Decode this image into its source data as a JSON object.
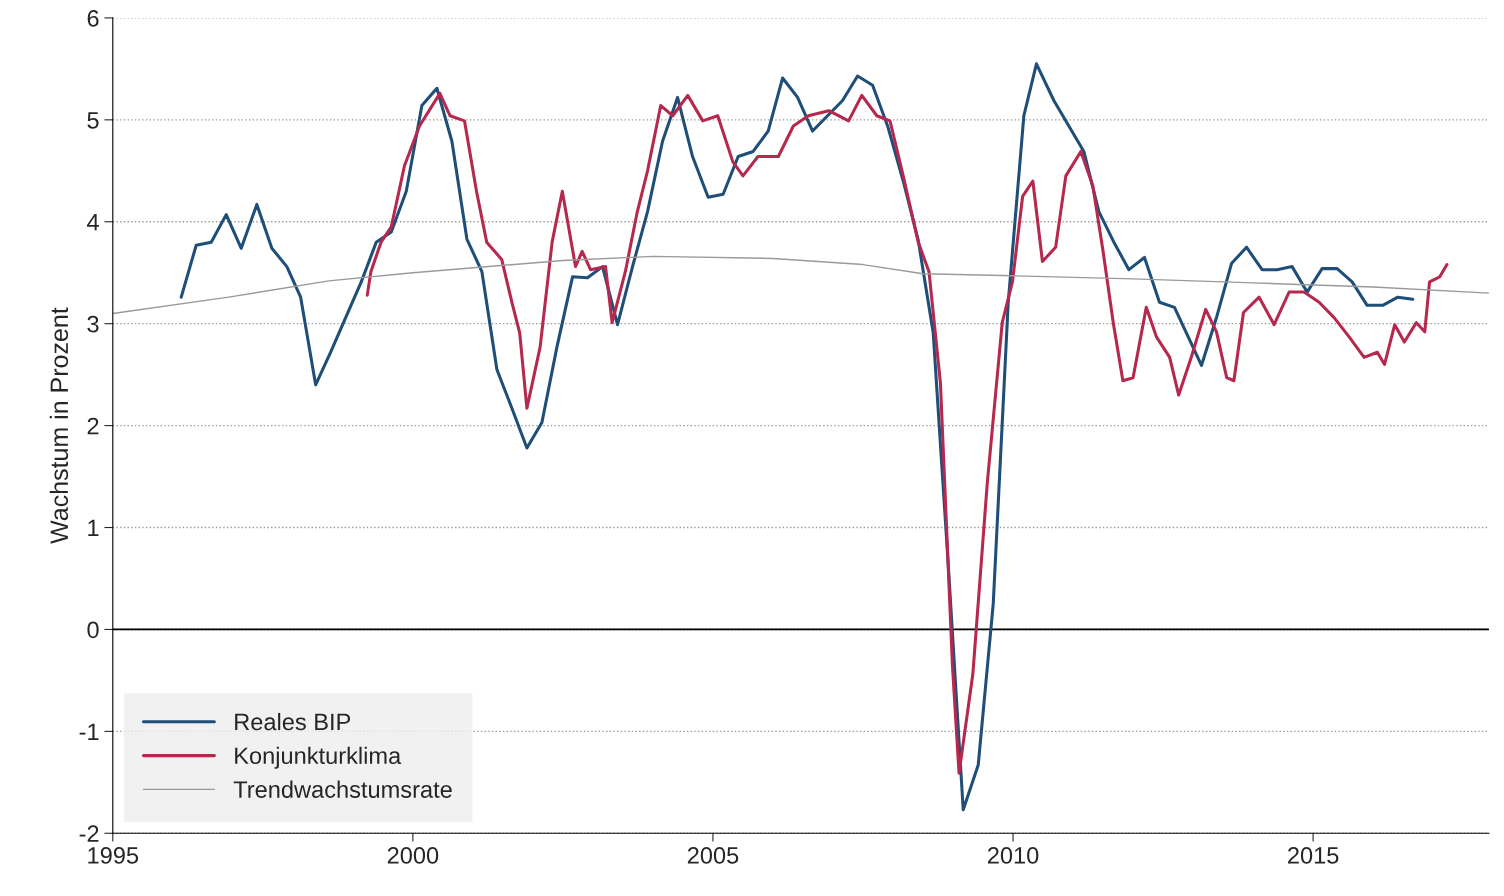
{
  "chart_data": {
    "type": "line",
    "ylabel": "Wachstum in Prozent",
    "xlim": [
      1995,
      2017.93
    ],
    "xticks": [
      1995,
      2000,
      2005,
      2010,
      2015
    ],
    "ylim": [
      -2,
      6
    ],
    "yticks": [
      -2,
      -1,
      0,
      1,
      2,
      3,
      4,
      5,
      6
    ],
    "grid": "y",
    "legend": "bottom left",
    "line_style": "solid",
    "marker": "none",
    "ref_lines": [
      {
        "axis": "y",
        "value": 0,
        "color": "#000000",
        "line_style": "solid"
      }
    ],
    "series": [
      {
        "name": "Reales BIP",
        "color": "#1f4e79",
        "x": [
          1996.14,
          1996.39,
          1996.64,
          1996.89,
          1997.14,
          1997.4,
          1997.65,
          1997.9,
          1998.13,
          1998.38,
          1998.63,
          1998.88,
          1999.14,
          1999.39,
          1999.64,
          1999.89,
          2000.15,
          2000.4,
          2000.65,
          2000.9,
          2001.15,
          2001.4,
          2001.65,
          2001.9,
          2002.15,
          2002.4,
          2002.66,
          2002.91,
          2003.16,
          2003.41,
          2003.66,
          2003.91,
          2004.16,
          2004.41,
          2004.66,
          2004.92,
          2005.17,
          2005.42,
          2005.67,
          2005.92,
          2006.16,
          2006.41,
          2006.66,
          2006.91,
          2007.16,
          2007.41,
          2007.66,
          2007.91,
          2008.17,
          2008.42,
          2008.67,
          2008.92,
          2009.17,
          2009.42,
          2009.67,
          2009.92,
          2010.18,
          2010.39,
          2010.68,
          2010.93,
          2011.18,
          2011.43,
          2011.68,
          2011.93,
          2012.19,
          2012.44,
          2012.69,
          2013.14,
          2013.39,
          2013.64,
          2013.89,
          2014.15,
          2014.4,
          2014.65,
          2014.9,
          2015.15,
          2015.4,
          2015.65,
          2015.9,
          2016.16,
          2016.41,
          2016.66
        ],
        "values": [
          3.26,
          3.77,
          3.8,
          4.07,
          3.74,
          4.17,
          3.74,
          3.56,
          3.26,
          2.4,
          2.72,
          3.06,
          3.41,
          3.8,
          3.9,
          4.3,
          5.14,
          5.31,
          4.79,
          3.83,
          3.51,
          2.55,
          2.17,
          1.78,
          2.03,
          2.77,
          3.46,
          3.45,
          3.56,
          2.99,
          3.56,
          4.1,
          4.79,
          5.22,
          4.64,
          4.24,
          4.27,
          4.64,
          4.69,
          4.89,
          5.41,
          5.22,
          4.89,
          5.04,
          5.19,
          5.43,
          5.34,
          4.94,
          4.4,
          3.82,
          2.91,
          0.64,
          -1.77,
          -1.33,
          0.25,
          3.21,
          5.04,
          5.55,
          5.19,
          4.94,
          4.69,
          4.1,
          3.8,
          3.53,
          3.65,
          3.21,
          3.16,
          2.59,
          3.06,
          3.59,
          3.75,
          3.53,
          3.53,
          3.56,
          3.31,
          3.54,
          3.54,
          3.41,
          3.18,
          3.18,
          3.26,
          3.24
        ]
      },
      {
        "name": "Konjunkturklima",
        "color": "#b5294e",
        "x": [
          1999.24,
          1999.3,
          1999.47,
          1999.64,
          1999.86,
          2000.11,
          2000.45,
          2000.62,
          2000.86,
          2001.06,
          2001.23,
          2001.48,
          2001.65,
          2001.78,
          2001.9,
          2002.12,
          2002.32,
          2002.49,
          2002.71,
          2002.82,
          2002.96,
          2003.21,
          2003.32,
          2003.54,
          2003.74,
          2003.91,
          2004.13,
          2004.33,
          2004.58,
          2004.83,
          2005.08,
          2005.33,
          2005.5,
          2005.75,
          2006.09,
          2006.34,
          2006.59,
          2006.93,
          2007.26,
          2007.48,
          2007.73,
          2007.95,
          2008.17,
          2008.42,
          2008.6,
          2008.79,
          2008.99,
          2009.1,
          2009.33,
          2009.57,
          2009.82,
          2009.99,
          2010.16,
          2010.33,
          2010.49,
          2010.71,
          2010.88,
          2011.13,
          2011.33,
          2011.5,
          2011.67,
          2011.83,
          2012.0,
          2012.22,
          2012.39,
          2012.61,
          2012.76,
          2012.97,
          2013.21,
          2013.39,
          2013.56,
          2013.68,
          2013.84,
          2014.1,
          2014.35,
          2014.6,
          2014.85,
          2015.1,
          2015.35,
          2015.6,
          2015.85,
          2016.07,
          2016.19,
          2016.36,
          2016.52,
          2016.72,
          2016.86,
          2016.94,
          2017.11,
          2017.23
        ],
        "values": [
          3.28,
          3.51,
          3.8,
          3.95,
          4.55,
          4.94,
          5.26,
          5.04,
          4.99,
          4.3,
          3.8,
          3.63,
          3.21,
          2.91,
          2.17,
          2.77,
          3.8,
          4.3,
          3.56,
          3.71,
          3.53,
          3.56,
          3.01,
          3.51,
          4.1,
          4.5,
          5.14,
          5.04,
          5.24,
          4.99,
          5.04,
          4.59,
          4.45,
          4.64,
          4.64,
          4.94,
          5.04,
          5.09,
          4.99,
          5.24,
          5.04,
          4.99,
          4.45,
          3.8,
          3.51,
          2.42,
          -0.35,
          -1.41,
          -0.44,
          1.43,
          3.01,
          3.41,
          4.25,
          4.4,
          3.61,
          3.75,
          4.45,
          4.69,
          4.35,
          3.71,
          3.01,
          2.44,
          2.47,
          3.16,
          2.87,
          2.67,
          2.3,
          2.67,
          3.14,
          2.92,
          2.47,
          2.44,
          3.11,
          3.26,
          2.99,
          3.31,
          3.31,
          3.21,
          3.06,
          2.87,
          2.67,
          2.72,
          2.6,
          2.99,
          2.82,
          3.01,
          2.92,
          3.41,
          3.46,
          3.58
        ]
      },
      {
        "name": "Trendwachstumsrate",
        "color": "#9a9a9a",
        "x": [
          1995,
          1996.93,
          1998.6,
          2000,
          2002.5,
          2004,
          2006,
          2007.5,
          2008.5,
          2010,
          2012,
          2014,
          2016,
          2017.93
        ],
        "values": [
          3.1,
          3.26,
          3.42,
          3.5,
          3.62,
          3.66,
          3.64,
          3.58,
          3.49,
          3.47,
          3.44,
          3.4,
          3.36,
          3.3
        ]
      }
    ]
  }
}
